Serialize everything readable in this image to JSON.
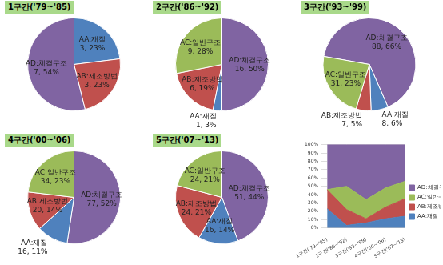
{
  "chart_data": [
    {
      "type": "pie",
      "title": "1구간('79~'85)",
      "categories": [
        "AA:재질",
        "AB:제조방법",
        "AD:체결구조"
      ],
      "values": [
        3,
        3,
        7
      ],
      "value_labels": [
        "3, 23%",
        "3, 23%",
        "7, 54%"
      ],
      "colors": [
        "#4f81bd",
        "#c0504d",
        "#8064a2"
      ],
      "data_labels": true
    },
    {
      "type": "pie",
      "title": "2구간('86~'92)",
      "categories": [
        "AD:체결구조",
        "AA:재질",
        "AB:제조방법",
        "AC:일반구조"
      ],
      "values": [
        16,
        1,
        6,
        9
      ],
      "value_labels": [
        "16, 50%",
        "1, 3%",
        "6, 19%",
        "9, 28%"
      ],
      "colors": [
        "#8064a2",
        "#4f81bd",
        "#c0504d",
        "#9bbb59"
      ],
      "data_labels": true
    },
    {
      "type": "pie",
      "title": "3구간('93~'99)",
      "categories": [
        "AD:체결구조",
        "AA:재질",
        "AB:제조방법",
        "AC:일반구조"
      ],
      "values": [
        88,
        8,
        7,
        31
      ],
      "value_labels": [
        "88, 66%",
        "8, 6%",
        "7, 5%",
        "31, 23%"
      ],
      "colors": [
        "#8064a2",
        "#4f81bd",
        "#c0504d",
        "#9bbb59"
      ],
      "data_labels": true
    },
    {
      "type": "pie",
      "title": "4구간('00~'06)",
      "categories": [
        "AD:체결구조",
        "AA:재질",
        "AB:제조방법",
        "AC:일반구조"
      ],
      "values": [
        77,
        16,
        20,
        34
      ],
      "value_labels": [
        "77, 52%",
        "16, 11%",
        "20, 14%",
        "34, 23%"
      ],
      "colors": [
        "#8064a2",
        "#4f81bd",
        "#c0504d",
        "#9bbb59"
      ],
      "data_labels": true
    },
    {
      "type": "pie",
      "title": "5구간('07~'13)",
      "categories": [
        "AD:체결구조",
        "AA:재질",
        "AB:제조방법",
        "AC:일반구조"
      ],
      "values": [
        51,
        16,
        24,
        24
      ],
      "value_labels": [
        "51, 44%",
        "16, 14%",
        "24, 21%",
        "24, 21%"
      ],
      "colors": [
        "#8064a2",
        "#4f81bd",
        "#c0504d",
        "#9bbb59"
      ],
      "data_labels": true
    },
    {
      "type": "area",
      "stacked": true,
      "grid": true,
      "legend": "right",
      "categories": [
        "1구간('79~'85)",
        "2구간('86~'92)",
        "3구간('93~'99)",
        "4구간('00~'06)",
        "5구간('07~'13)"
      ],
      "series": [
        {
          "name": "AA:재질",
          "color": "#4f81bd",
          "values": [
            23,
            3,
            6,
            11,
            14
          ]
        },
        {
          "name": "AB:제조방법",
          "color": "#c0504d",
          "values": [
            23,
            19,
            5,
            14,
            21
          ]
        },
        {
          "name": "AC:일반구조",
          "color": "#9bbb59",
          "values": [
            0,
            28,
            23,
            23,
            21
          ]
        },
        {
          "name": "AD:체결구조",
          "color": "#8064a2",
          "values": [
            54,
            50,
            66,
            52,
            44
          ]
        }
      ],
      "ylim": [
        0,
        100
      ],
      "yticks": [
        {
          "value": 0,
          "label": "0%"
        },
        {
          "value": 10,
          "label": "10%"
        },
        {
          "value": 20,
          "label": "20%"
        },
        {
          "value": 30,
          "label": "30%"
        },
        {
          "value": 40,
          "label": "40%"
        },
        {
          "value": 50,
          "label": "50%"
        },
        {
          "value": 60,
          "label": "60%"
        },
        {
          "value": 70,
          "label": "70%"
        },
        {
          "value": 80,
          "label": "80%"
        },
        {
          "value": 90,
          "label": "90%"
        },
        {
          "value": 100,
          "label": "100%"
        }
      ]
    }
  ]
}
